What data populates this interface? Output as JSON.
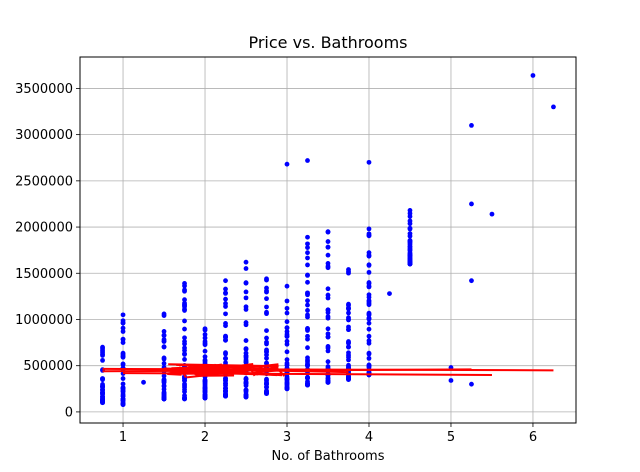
{
  "chart_data": {
    "type": "scatter",
    "title": "Price vs. Bathrooms",
    "xlabel": "No. of Bathrooms",
    "ylabel": "",
    "xlim": [
      0.475,
      6.525
    ],
    "ylim": [
      -120000,
      3840000
    ],
    "xticks": [
      1,
      2,
      3,
      4,
      5,
      6
    ],
    "yticks": [
      0,
      500000,
      1000000,
      1500000,
      2000000,
      2500000,
      3000000,
      3500000
    ],
    "grid": true,
    "colors": {
      "points": "#0000ff",
      "fit": "#ff0000",
      "grid": "#b0b0b0"
    },
    "series": [
      {
        "kind": "points",
        "columns": [
          {
            "x": 0.75,
            "y": [
              100000,
              700000
            ]
          },
          {
            "x": 1.0,
            "y": [
              80000,
              1050000
            ]
          },
          {
            "x": 1.25,
            "y": [
              320000,
              320000
            ]
          },
          {
            "x": 1.5,
            "y": [
              140000,
              1060000
            ]
          },
          {
            "x": 1.75,
            "y": [
              140000,
              1390000
            ]
          },
          {
            "x": 2.0,
            "y": [
              150000,
              900000
            ]
          },
          {
            "x": 2.25,
            "y": [
              170000,
              1420000
            ]
          },
          {
            "x": 2.5,
            "y": [
              160000,
              1620000
            ]
          },
          {
            "x": 2.75,
            "y": [
              200000,
              1440000
            ]
          },
          {
            "x": 3.0,
            "y": [
              250000,
              1360000
            ]
          },
          {
            "x": 3.25,
            "y": [
              290000,
              1890000
            ]
          },
          {
            "x": 3.5,
            "y": [
              320000,
              1950000
            ]
          },
          {
            "x": 3.75,
            "y": [
              350000,
              1540000
            ]
          },
          {
            "x": 4.0,
            "y": [
              400000,
              1980000
            ]
          },
          {
            "x": 4.5,
            "y": [
              1600000,
              2180000
            ]
          }
        ],
        "outliers": [
          [
            3.0,
            2680000
          ],
          [
            3.25,
            2720000
          ],
          [
            4.0,
            2700000
          ],
          [
            4.25,
            1280000
          ],
          [
            4.5,
            1710000
          ],
          [
            5.0,
            480000
          ],
          [
            5.0,
            340000
          ],
          [
            5.25,
            3100000
          ],
          [
            5.25,
            2250000
          ],
          [
            5.25,
            1420000
          ],
          [
            5.25,
            300000
          ],
          [
            5.5,
            2140000
          ],
          [
            6.0,
            3640000
          ],
          [
            6.25,
            3300000
          ],
          [
            1.0,
            870000
          ],
          [
            2.0,
            800000
          ],
          [
            3.0,
            1200000
          ],
          [
            3.5,
            1560000
          ],
          [
            3.75,
            1120000
          ],
          [
            4.0,
            1400000
          ],
          [
            4.0,
            1240000
          ],
          [
            4.0,
            960000
          ],
          [
            4.0,
            500000
          ]
        ]
      },
      {
        "kind": "fit",
        "segments": [
          [
            [
              0.75,
              440000
            ],
            [
              5.25,
              460000
            ]
          ],
          [
            [
              0.75,
              465000
            ],
            [
              6.25,
              450000
            ]
          ],
          [
            [
              1.0,
              420000
            ],
            [
              5.5,
              400000
            ]
          ],
          [
            [
              1.5,
              470000
            ],
            [
              3.75,
              430000
            ]
          ]
        ],
        "blob": {
          "x_from": 1.5,
          "x_to": 3.0,
          "y_from": 370000,
          "y_to": 520000
        }
      }
    ]
  }
}
